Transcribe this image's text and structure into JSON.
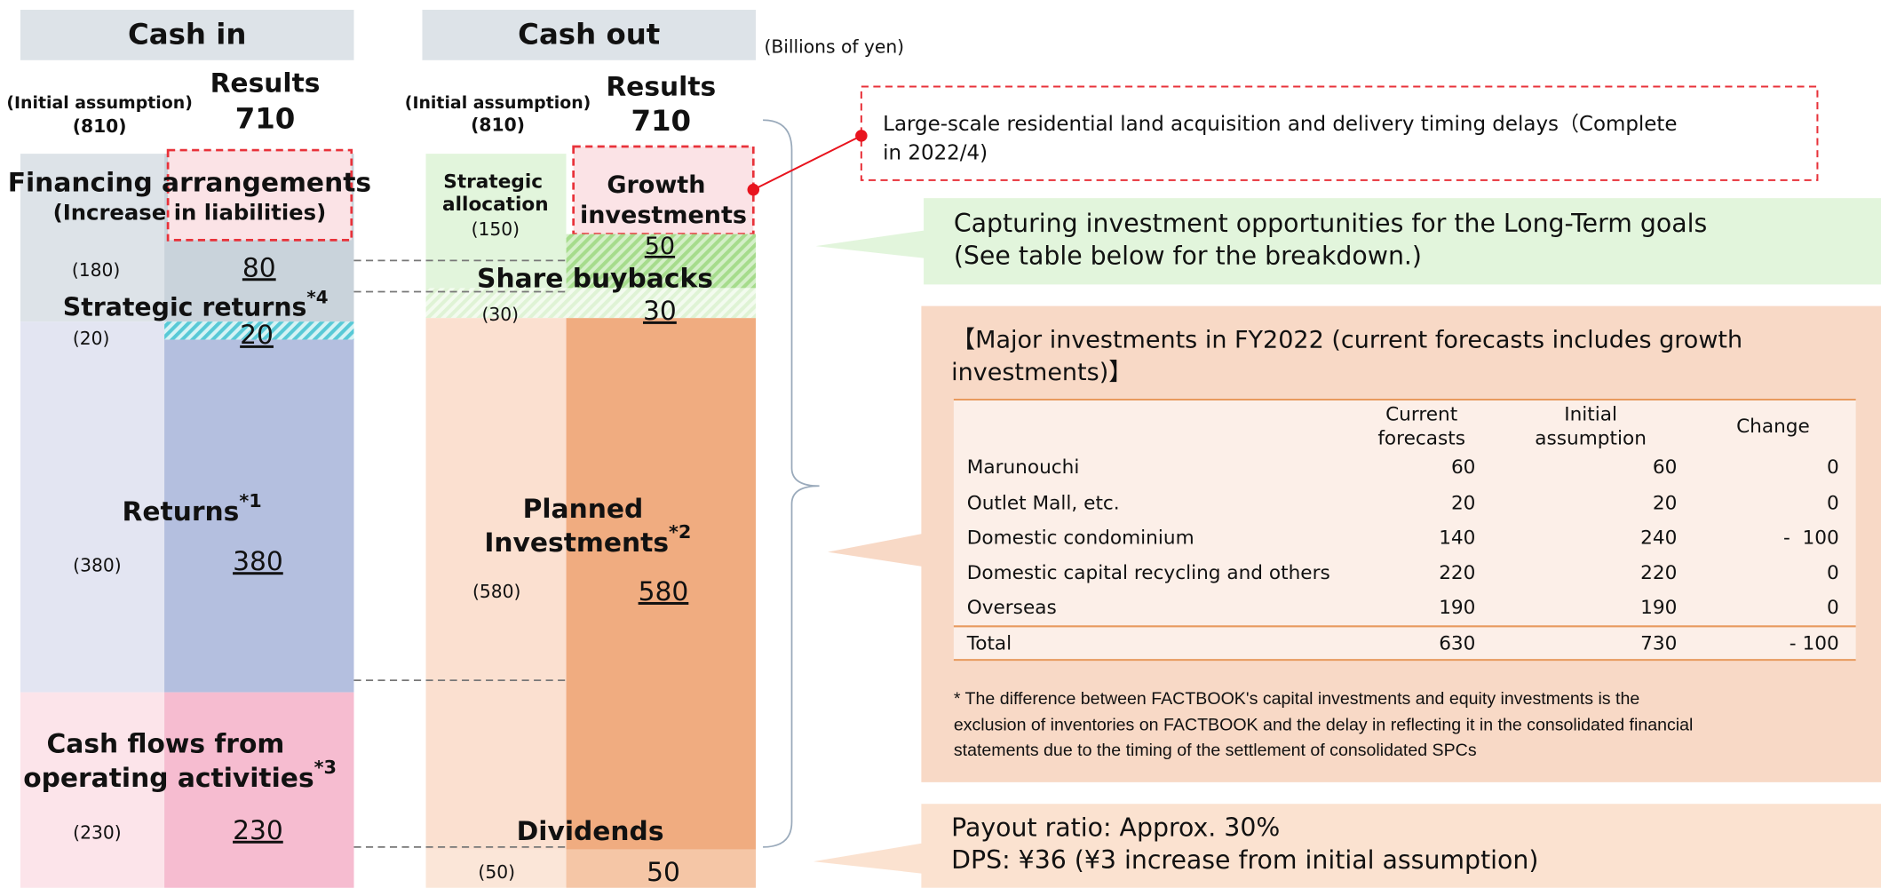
{
  "unit": "(Billions of yen)",
  "cash_in": {
    "header": "Cash in",
    "initial_label": "(Initial assumption)",
    "initial_total": "(810)",
    "results_label": "Results",
    "results_total": "710",
    "financing": {
      "label": [
        "Financing arrangements",
        "(Increase in liabilities)"
      ],
      "initial": "(180)",
      "result": "80"
    },
    "strategic_returns": {
      "label": "Strategic returns",
      "note": "*4",
      "initial": "(20)",
      "result": "20"
    },
    "returns": {
      "label": "Returns",
      "note": "*1",
      "initial": "(380)",
      "result": "380"
    },
    "operating": {
      "label": [
        "Cash flows from",
        "operating activities"
      ],
      "note": "*3",
      "initial": "(230)",
      "result": "230"
    }
  },
  "cash_out": {
    "header": "Cash out",
    "initial_label": "(Initial assumption)",
    "initial_total": "(810)",
    "results_label": "Results",
    "results_total": "710",
    "strategic_allocation": {
      "label": [
        "Strategic",
        "allocation"
      ],
      "initial": "(150)"
    },
    "growth": {
      "label": [
        "Growth",
        "investments"
      ],
      "result": "50"
    },
    "buybacks": {
      "label": "Share buybacks",
      "initial": "(30)",
      "result": "30"
    },
    "planned": {
      "label": [
        "Planned",
        "Investments"
      ],
      "note": "*2",
      "initial": "(580)",
      "result": "580"
    },
    "dividends": {
      "label": "Dividends",
      "initial": "(50)",
      "result": "50"
    }
  },
  "notes": {
    "delay": [
      "Large-scale residential land acquisition and delivery timing delays（Complete",
      "in 2022/4)"
    ],
    "growth": [
      "Capturing investment opportunities for the Long-Term goals",
      "(See table below for the breakdown.)"
    ],
    "payout": [
      "Payout ratio: Approx. 30%",
      "DPS: ¥36 (¥3 increase from initial assumption)"
    ]
  },
  "table": {
    "title": [
      "【Major investments in FY2022 (current forecasts includes growth",
      "investments)】"
    ],
    "headers": [
      [
        "Current",
        "forecasts"
      ],
      [
        "Initial",
        "assumption"
      ],
      [
        "Change"
      ]
    ],
    "rows": [
      [
        "Marunouchi",
        "60",
        "60",
        "0"
      ],
      [
        "Outlet Mall, etc.",
        "20",
        "20",
        "0"
      ],
      [
        "Domestic condominium",
        "140",
        "240",
        "-  100"
      ],
      [
        "Domestic capital recycling and others",
        "220",
        "220",
        "0"
      ],
      [
        "Overseas",
        "190",
        "190",
        "0"
      ],
      [
        "Total",
        "630",
        "730",
        "- 100"
      ]
    ],
    "footnote": [
      "* The difference between FACTBOOK's capital investments and equity investments is the",
      "exclusion of inventories on FACTBOOK and the delay in reflecting it in the consolidated financial",
      "statements due to the timing of the settlement of  consolidated SPCs"
    ]
  }
}
